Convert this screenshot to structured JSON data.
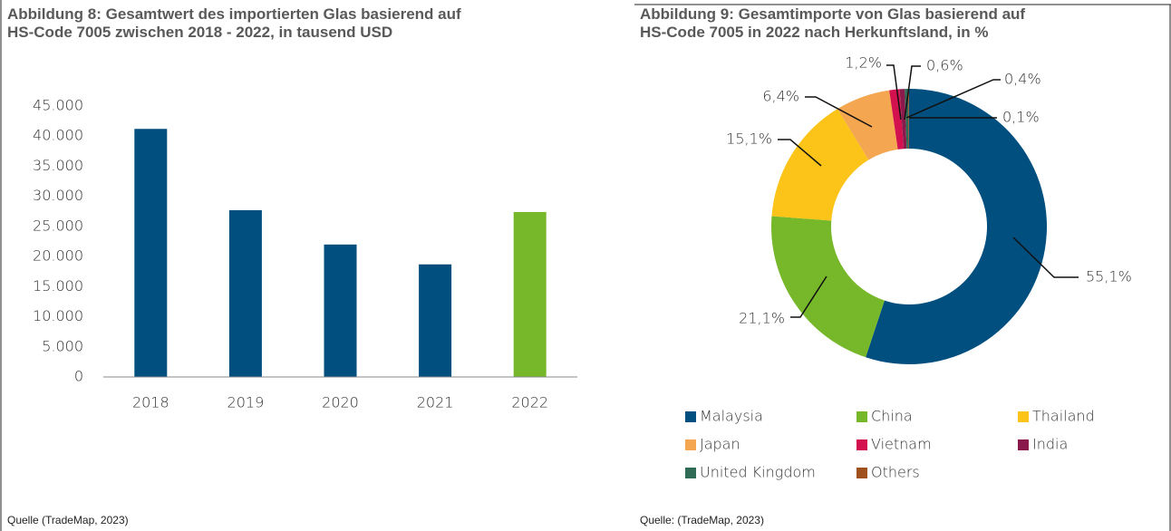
{
  "chart_data": [
    {
      "type": "bar",
      "title": "Abbildung 8: Gesamtwert des importierten Glas basierend auf\nHS-Code 7005 zwischen 2018 - 2022, in tausend USD",
      "categories": [
        "2018",
        "2019",
        "2020",
        "2021",
        "2022"
      ],
      "values": [
        41200,
        27700,
        22000,
        18700,
        27400
      ],
      "colors": [
        "#004f7f",
        "#004f7f",
        "#004f7f",
        "#004f7f",
        "#76b82a"
      ],
      "ylim": [
        0,
        45000
      ],
      "yticks": [
        0,
        {
          "value": 5000,
          "label": "5.000"
        },
        {
          "value": 10000,
          "label": "10.000"
        },
        {
          "value": 15000,
          "label": "15.000"
        },
        {
          "value": 20000,
          "label": "20.000"
        },
        {
          "value": 25000,
          "label": "25.000"
        },
        {
          "value": 30000,
          "label": "30.000"
        },
        {
          "value": 35000,
          "label": "35.000"
        },
        {
          "value": 40000,
          "label": "40.000"
        },
        {
          "value": 45000,
          "label": "45.000"
        }
      ],
      "grid": false,
      "source": "Quelle (TradeMap, 2023)"
    },
    {
      "type": "donut",
      "title": "Abbildung 9: Gesamtimporte von Glas basierend auf\nHS-Code 7005 in 2022 nach Herkunftsland, in %",
      "categories": [
        "Malaysia",
        "China",
        "Thailand",
        "Japan",
        "Vietnam",
        "India",
        "United Kingdom",
        "Others"
      ],
      "values": [
        55.1,
        21.1,
        15.1,
        6.4,
        1.2,
        0.6,
        0.4,
        0.1
      ],
      "value_labels": [
        "55,1%",
        "21,1%",
        "15,1%",
        "6,4%",
        "1,2%",
        "0,6%",
        "0,4%",
        "0,1%"
      ],
      "colors": [
        "#004f7f",
        "#76b82a",
        "#fcc419",
        "#f4a650",
        "#d3114e",
        "#8a1a4b",
        "#2f6b55",
        "#a0501d"
      ],
      "legend": "bottom",
      "source": "Quelle: (TradeMap, 2023)"
    }
  ]
}
